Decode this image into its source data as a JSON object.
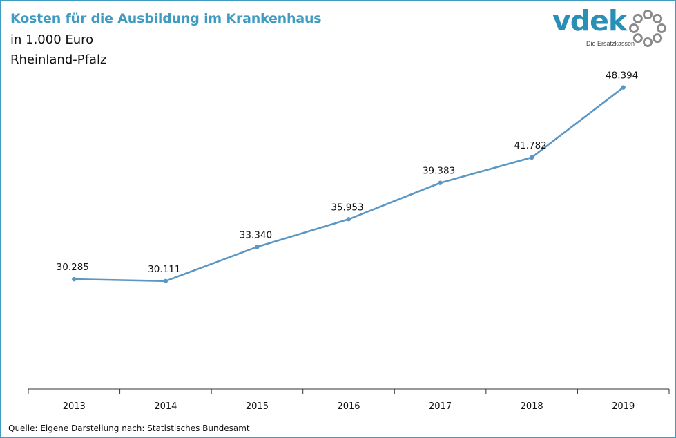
{
  "header": {
    "title": "Kosten für die Ausbildung im Krankenhaus",
    "subtitle_line1": "in 1.000 Euro",
    "subtitle_line2": "Rheinland-Pfalz"
  },
  "logo": {
    "word": "vdek",
    "tagline": "Die Ersatzkassen",
    "color": "#2a8fb4",
    "ring_color": "#8a8a8a"
  },
  "footer": {
    "source": "Quelle: Eigene Darstellung nach: Statistisches Bundesamt"
  },
  "chart_data": {
    "type": "line",
    "title": "Kosten für die Ausbildung im Krankenhaus",
    "subtitle": [
      "in 1.000 Euro",
      "Rheinland-Pfalz"
    ],
    "categories": [
      "2013",
      "2014",
      "2015",
      "2016",
      "2017",
      "2018",
      "2019"
    ],
    "series": [
      {
        "values": [
          30285,
          30111,
          33340,
          35953,
          39383,
          41782,
          48394
        ],
        "labels": [
          "30.285",
          "30.111",
          "33.340",
          "35.953",
          "39.383",
          "41.782",
          "48.394"
        ],
        "color": "#5b97c4"
      }
    ],
    "xlabel": "",
    "ylabel": "",
    "y_axis_visible": false,
    "grid": false,
    "legend": "none"
  }
}
